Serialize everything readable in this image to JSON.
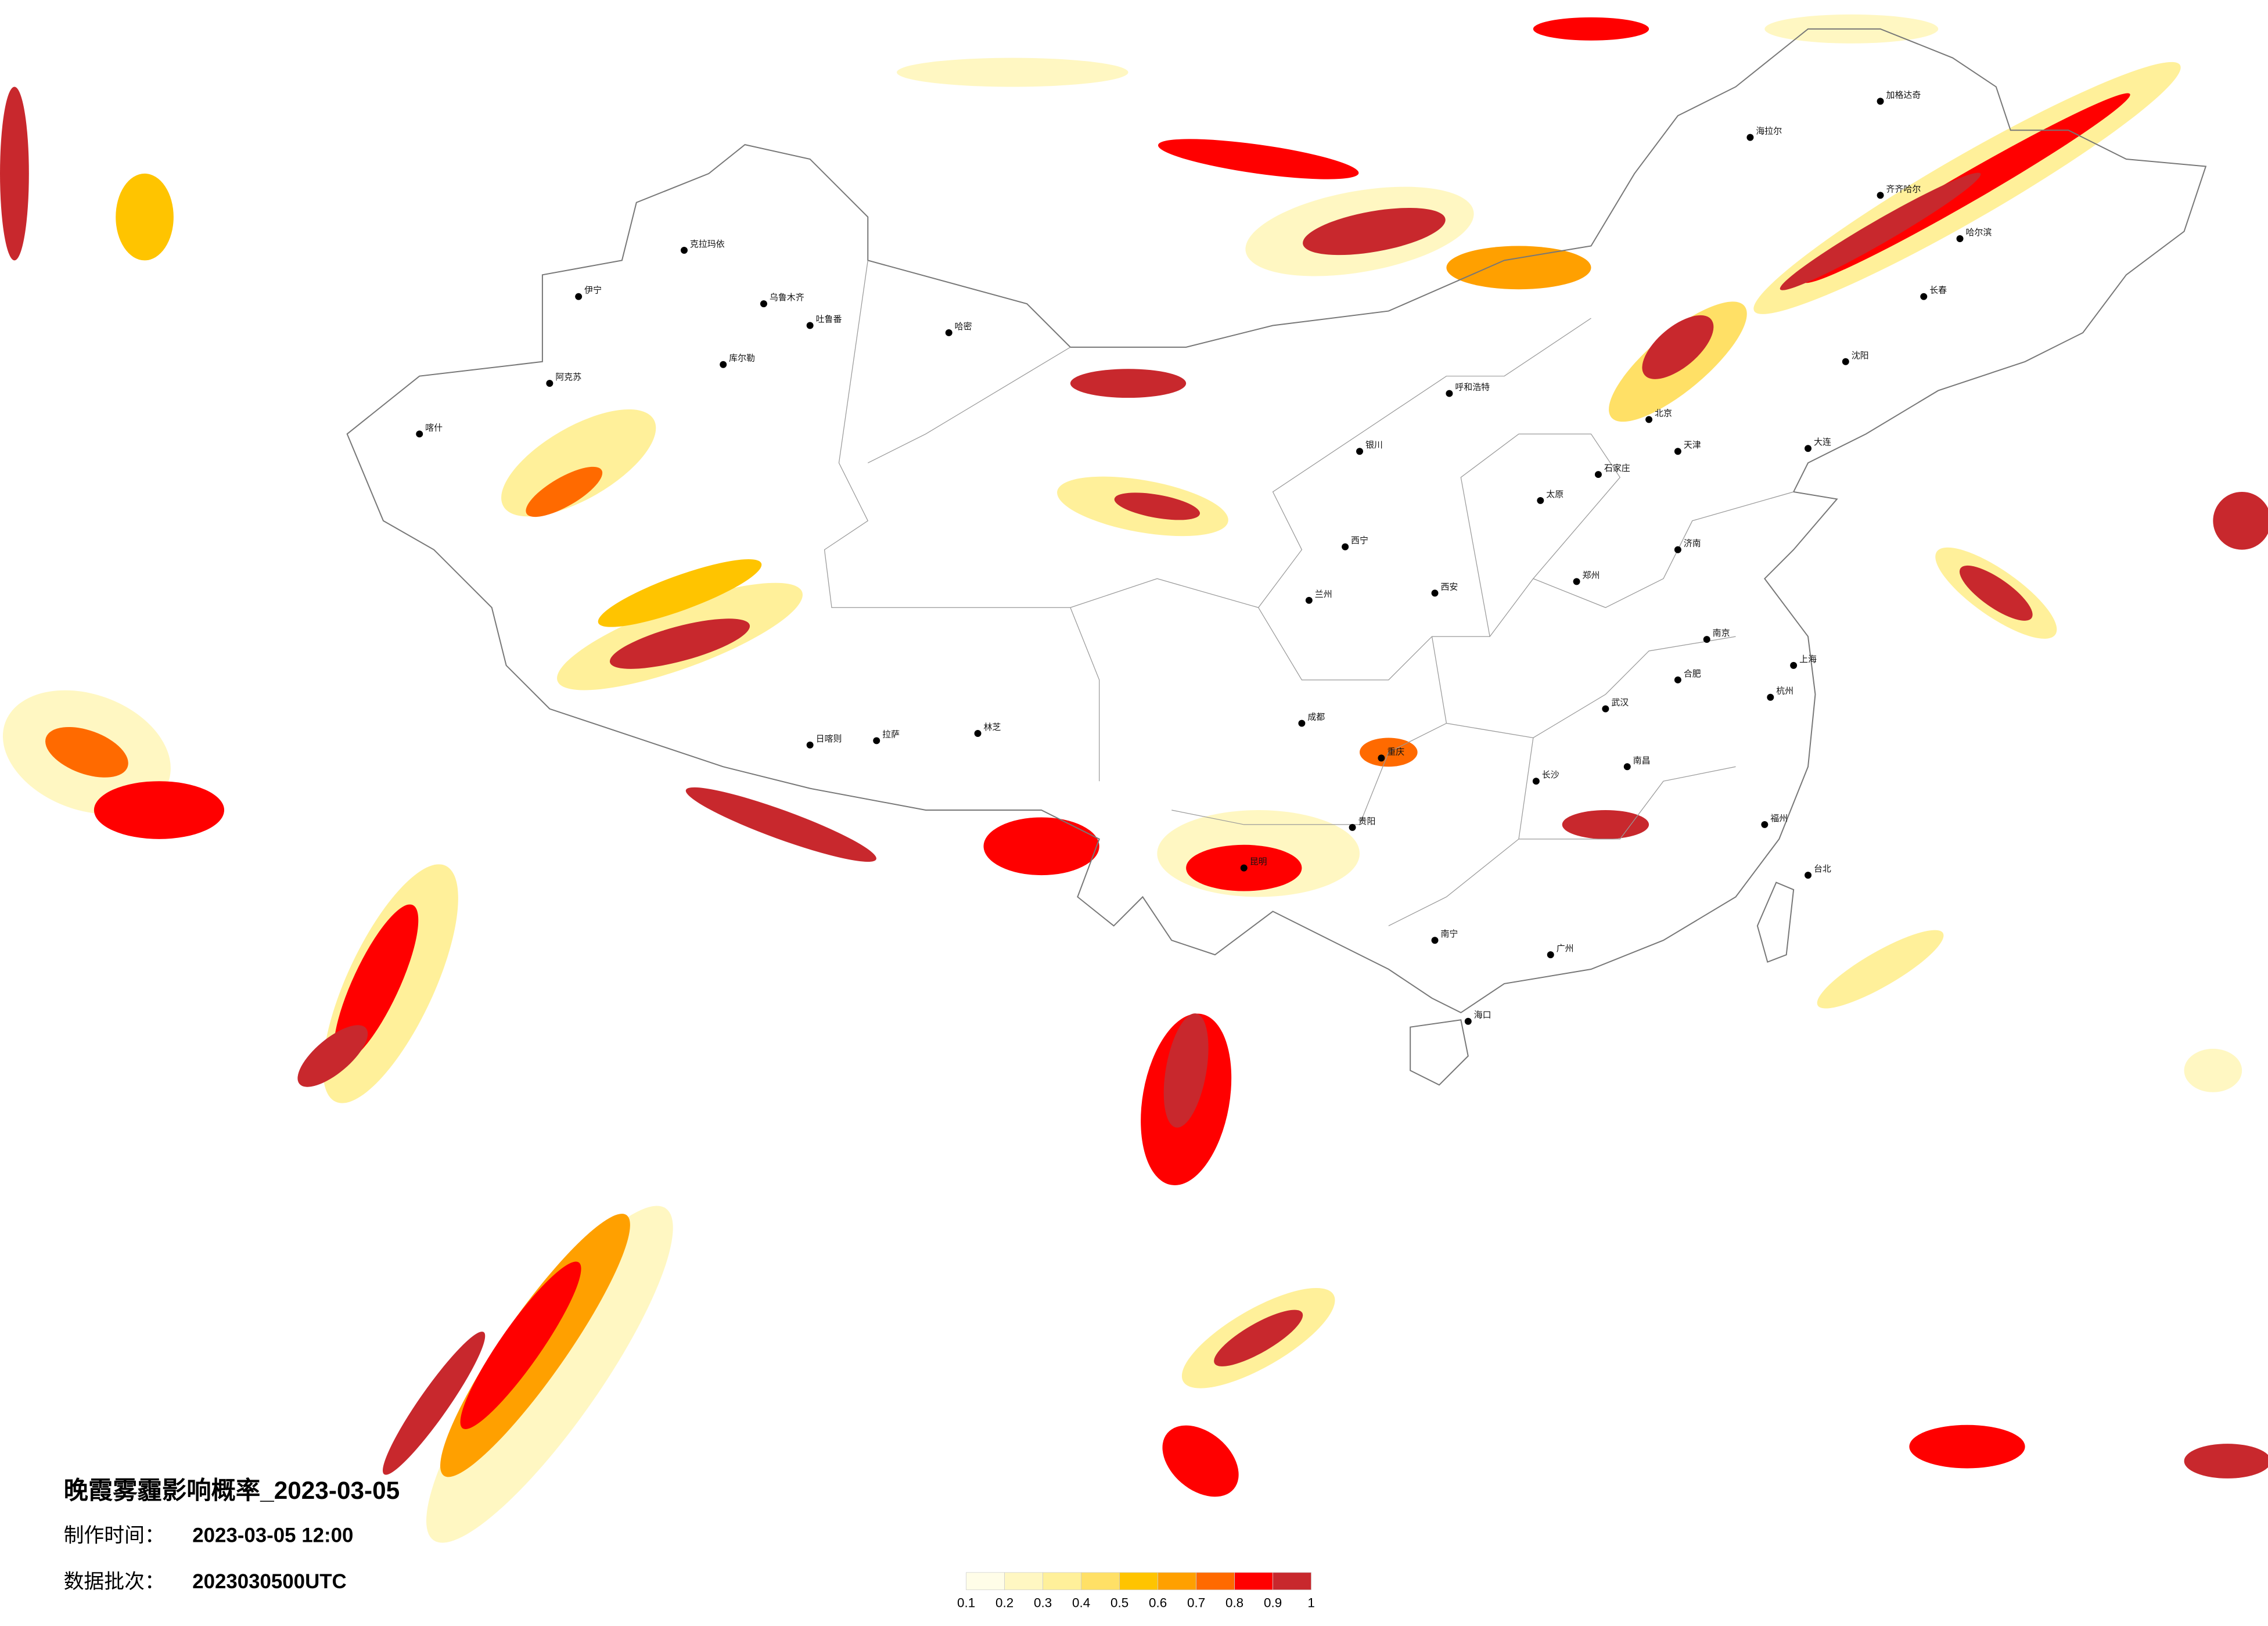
{
  "map": {
    "title": "晚霞雾霾影响概率_2023-03-05",
    "made_label": "制作时间：",
    "made_value": "2023-03-05 12:00",
    "batch_label": "数据批次：",
    "batch_value": "2023030500UTC",
    "legend": {
      "ticks": [
        0.1,
        0.2,
        0.3,
        0.4,
        0.5,
        0.6,
        0.7,
        0.8,
        0.9,
        1
      ],
      "colors": [
        "#fffde8",
        "#fff7c2",
        "#fff09a",
        "#ffe066",
        "#ffc400",
        "#ffa000",
        "#ff6a00",
        "#ff0000",
        "#c8282d"
      ]
    },
    "cities": [
      "克拉玛依",
      "乌鲁木齐",
      "伊宁",
      "阿克苏",
      "喀什",
      "吐鲁番",
      "哈密",
      "库尔勒",
      "拉萨",
      "日喀则",
      "林芝",
      "西宁",
      "兰州",
      "呼和浩特",
      "北京",
      "天津",
      "石家庄",
      "太原",
      "济南",
      "郑州",
      "西安",
      "成都",
      "重庆",
      "贵阳",
      "昆明",
      "南宁",
      "广州",
      "长沙",
      "武汉",
      "南京",
      "上海",
      "杭州",
      "福州",
      "海口",
      "台北",
      "哈尔滨",
      "长春",
      "沈阳",
      "大连",
      "齐齐哈尔",
      "海拉尔",
      "加格达奇",
      "银川",
      "合肥",
      "南昌"
    ]
  }
}
